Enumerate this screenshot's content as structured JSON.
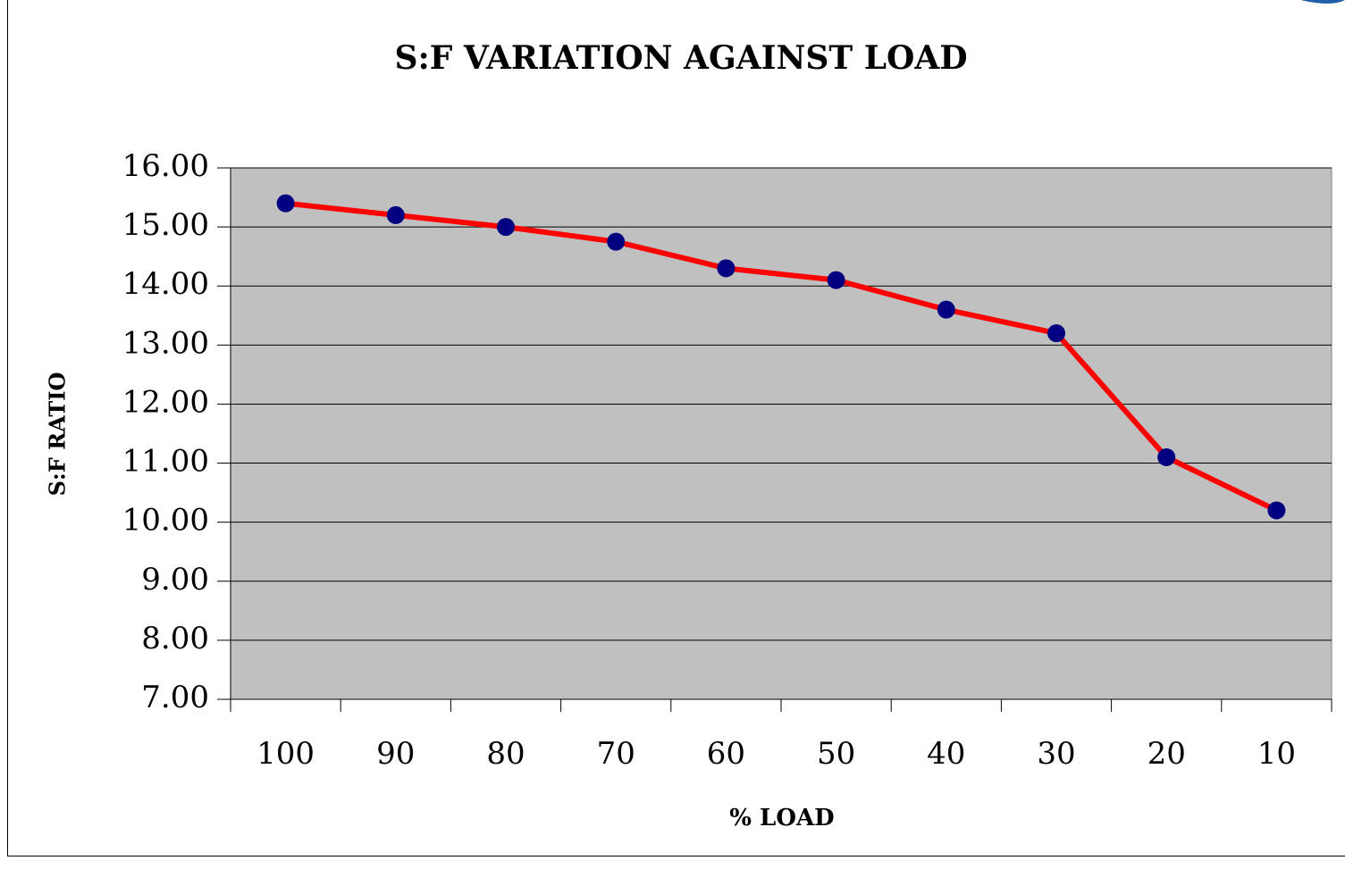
{
  "chart_data": {
    "type": "line",
    "title": "S:F VARIATION AGAINST LOAD",
    "x_label": "% LOAD",
    "y_label": "S:F RATIO",
    "categories": [
      "100",
      "90",
      "80",
      "70",
      "60",
      "50",
      "40",
      "30",
      "20",
      "10"
    ],
    "series": [
      {
        "name": "S:F RATIO",
        "color": "#ff0000",
        "marker_color": "#000080",
        "values": [
          15.4,
          15.2,
          15.0,
          14.75,
          14.3,
          14.1,
          13.6,
          13.2,
          11.1,
          10.2
        ]
      }
    ],
    "ylim": [
      7,
      16
    ],
    "yticks": [
      {
        "value": 7,
        "label": "7.00"
      },
      {
        "value": 8,
        "label": "8.00"
      },
      {
        "value": 9,
        "label": "9.00"
      },
      {
        "value": 10,
        "label": "10.00"
      },
      {
        "value": 11,
        "label": "11.00"
      },
      {
        "value": 12,
        "label": "12.00"
      },
      {
        "value": 13,
        "label": "13.00"
      },
      {
        "value": 14,
        "label": "14.00"
      },
      {
        "value": 15,
        "label": "15.00"
      },
      {
        "value": 16,
        "label": "16.00"
      }
    ],
    "grid": true,
    "plot_background": "#c0c0c0"
  }
}
